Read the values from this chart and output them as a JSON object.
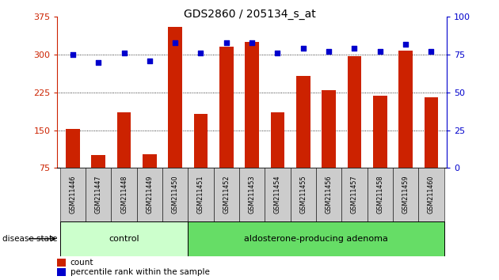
{
  "title": "GDS2860 / 205134_s_at",
  "samples": [
    "GSM211446",
    "GSM211447",
    "GSM211448",
    "GSM211449",
    "GSM211450",
    "GSM211451",
    "GSM211452",
    "GSM211453",
    "GSM211454",
    "GSM211455",
    "GSM211456",
    "GSM211457",
    "GSM211458",
    "GSM211459",
    "GSM211460"
  ],
  "counts": [
    152,
    100,
    185,
    102,
    355,
    183,
    315,
    325,
    185,
    258,
    230,
    297,
    218,
    308,
    215
  ],
  "percentiles": [
    75,
    70,
    76,
    71,
    83,
    76,
    83,
    83,
    76,
    79,
    77,
    79,
    77,
    82,
    77
  ],
  "n_control": 5,
  "n_adenoma": 10,
  "ylim_left": [
    75,
    375
  ],
  "ylim_right": [
    0,
    100
  ],
  "yticks_left": [
    75,
    150,
    225,
    300,
    375
  ],
  "yticks_right": [
    0,
    25,
    50,
    75,
    100
  ],
  "bar_color": "#cc2200",
  "dot_color": "#0000cc",
  "bar_width": 0.55,
  "control_bg": "#ccffcc",
  "adenoma_bg": "#66dd66",
  "label_bg": "#cccccc",
  "legend_count_label": "count",
  "legend_pct_label": "percentile rank within the sample",
  "disease_state_label": "disease state",
  "control_label": "control",
  "adenoma_label": "aldosterone-producing adenoma"
}
